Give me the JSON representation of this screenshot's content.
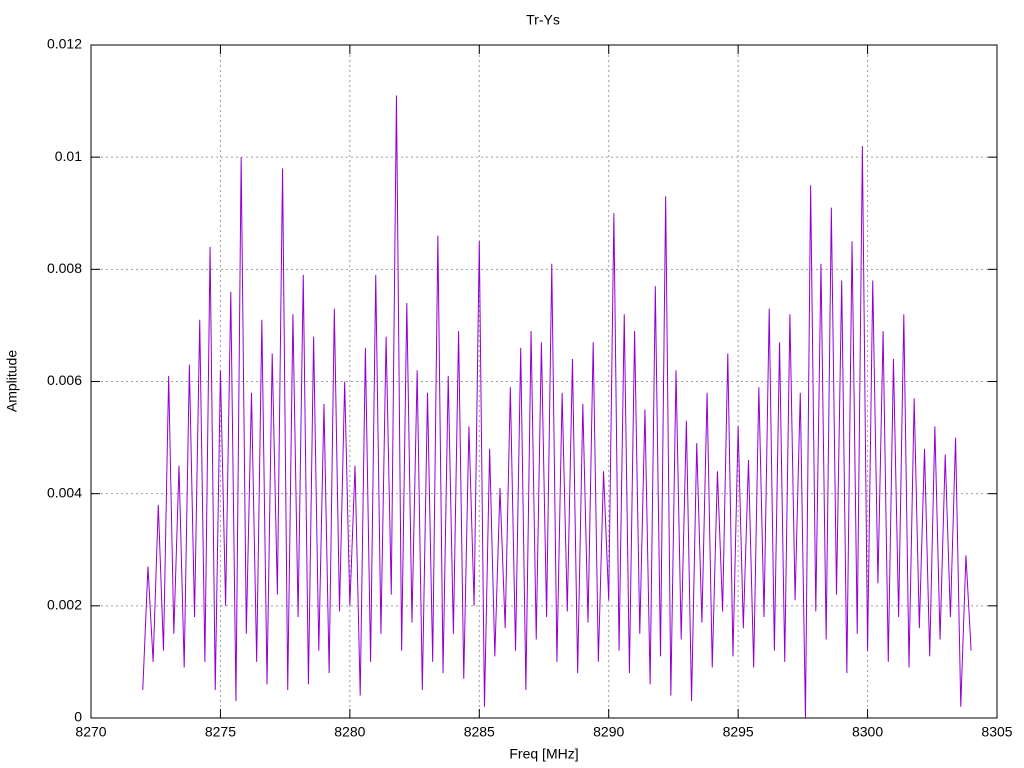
{
  "chart_data": {
    "type": "line",
    "title": "Tr-Ys",
    "xlabel": "Freq [MHz]",
    "ylabel": "Amplitude",
    "xlim": [
      8270,
      8305
    ],
    "xticks": [
      8270,
      8275,
      8280,
      8285,
      8290,
      8295,
      8300,
      8305
    ],
    "ylim": [
      0,
      0.012
    ],
    "yticks": [
      0,
      0.002,
      0.004,
      0.006,
      0.008,
      0.01,
      0.012
    ],
    "grid": true,
    "x": [
      8272.0,
      8272.2,
      8272.4,
      8272.6,
      8272.8,
      8273.0,
      8273.2,
      8273.4,
      8273.6,
      8273.8,
      8274.0,
      8274.2,
      8274.4,
      8274.6,
      8274.8,
      8275.0,
      8275.2,
      8275.4,
      8275.6,
      8275.8,
      8276.0,
      8276.2,
      8276.4,
      8276.6,
      8276.8,
      8277.0,
      8277.2,
      8277.4,
      8277.6,
      8277.8,
      8278.0,
      8278.2,
      8278.4,
      8278.6,
      8278.8,
      8279.0,
      8279.2,
      8279.4,
      8279.6,
      8279.8,
      8280.0,
      8280.2,
      8280.4,
      8280.6,
      8280.8,
      8281.0,
      8281.2,
      8281.4,
      8281.6,
      8281.8,
      8282.0,
      8282.2,
      8282.4,
      8282.6,
      8282.8,
      8283.0,
      8283.2,
      8283.4,
      8283.6,
      8283.8,
      8284.0,
      8284.2,
      8284.4,
      8284.6,
      8284.8,
      8285.0,
      8285.2,
      8285.4,
      8285.6,
      8285.8,
      8286.0,
      8286.2,
      8286.4,
      8286.6,
      8286.8,
      8287.0,
      8287.2,
      8287.4,
      8287.6,
      8287.8,
      8288.0,
      8288.2,
      8288.4,
      8288.6,
      8288.8,
      8289.0,
      8289.2,
      8289.4,
      8289.6,
      8289.8,
      8290.0,
      8290.2,
      8290.4,
      8290.6,
      8290.8,
      8291.0,
      8291.2,
      8291.4,
      8291.6,
      8291.8,
      8292.0,
      8292.2,
      8292.4,
      8292.6,
      8292.8,
      8293.0,
      8293.2,
      8293.4,
      8293.6,
      8293.8,
      8294.0,
      8294.2,
      8294.4,
      8294.6,
      8294.8,
      8295.0,
      8295.2,
      8295.4,
      8295.6,
      8295.8,
      8296.0,
      8296.2,
      8296.4,
      8296.6,
      8296.8,
      8297.0,
      8297.2,
      8297.4,
      8297.6,
      8297.8,
      8298.0,
      8298.2,
      8298.4,
      8298.6,
      8298.8,
      8299.0,
      8299.2,
      8299.4,
      8299.6,
      8299.8,
      8300.0,
      8300.2,
      8300.4,
      8300.6,
      8300.8,
      8301.0,
      8301.2,
      8301.4,
      8301.6,
      8301.8,
      8302.0,
      8302.2,
      8302.4,
      8302.6,
      8302.8,
      8303.0,
      8303.2,
      8303.4,
      8303.6,
      8303.8,
      8304.0
    ],
    "series": [
      {
        "color": "#9400d3",
        "values": [
          0.0005,
          0.0027,
          0.001,
          0.0038,
          0.0012,
          0.0061,
          0.0015,
          0.0045,
          0.0009,
          0.0063,
          0.0018,
          0.0071,
          0.001,
          0.0084,
          0.0005,
          0.0062,
          0.002,
          0.0076,
          0.0003,
          0.01,
          0.0015,
          0.0058,
          0.001,
          0.0071,
          0.0006,
          0.0065,
          0.0022,
          0.0098,
          0.0005,
          0.0072,
          0.0018,
          0.0079,
          0.0006,
          0.0068,
          0.0012,
          0.0056,
          0.0008,
          0.0073,
          0.0019,
          0.006,
          0.002,
          0.0045,
          0.0004,
          0.0066,
          0.001,
          0.0079,
          0.0015,
          0.0068,
          0.0022,
          0.0111,
          0.0012,
          0.0074,
          0.0017,
          0.0062,
          0.0005,
          0.0058,
          0.001,
          0.0086,
          0.0008,
          0.0061,
          0.0015,
          0.0069,
          0.0007,
          0.0052,
          0.002,
          0.0085,
          0.0002,
          0.0048,
          0.0011,
          0.0041,
          0.0016,
          0.0059,
          0.0012,
          0.0066,
          0.0005,
          0.0069,
          0.0014,
          0.0067,
          0.0018,
          0.0081,
          0.001,
          0.0058,
          0.0019,
          0.0064,
          0.0008,
          0.0056,
          0.0017,
          0.0067,
          0.001,
          0.0044,
          0.0021,
          0.009,
          0.0012,
          0.0072,
          0.0008,
          0.0069,
          0.0015,
          0.0055,
          0.0006,
          0.0077,
          0.0011,
          0.0093,
          0.0004,
          0.0062,
          0.0014,
          0.0053,
          0.0003,
          0.0049,
          0.0017,
          0.0058,
          0.0009,
          0.0044,
          0.0019,
          0.0065,
          0.0011,
          0.0052,
          0.0016,
          0.0046,
          0.0009,
          0.0059,
          0.0018,
          0.0073,
          0.0012,
          0.0067,
          0.001,
          0.0072,
          0.0021,
          0.0058,
          0.0,
          0.0095,
          0.0019,
          0.0081,
          0.0014,
          0.0091,
          0.0022,
          0.0078,
          0.0008,
          0.0085,
          0.0015,
          0.0102,
          0.0012,
          0.0078,
          0.0024,
          0.0069,
          0.001,
          0.0064,
          0.0018,
          0.0072,
          0.0009,
          0.0057,
          0.0016,
          0.0048,
          0.0011,
          0.0052,
          0.0014,
          0.0047,
          0.0018,
          0.005,
          0.0002,
          0.0029,
          0.0012
        ]
      }
    ]
  }
}
